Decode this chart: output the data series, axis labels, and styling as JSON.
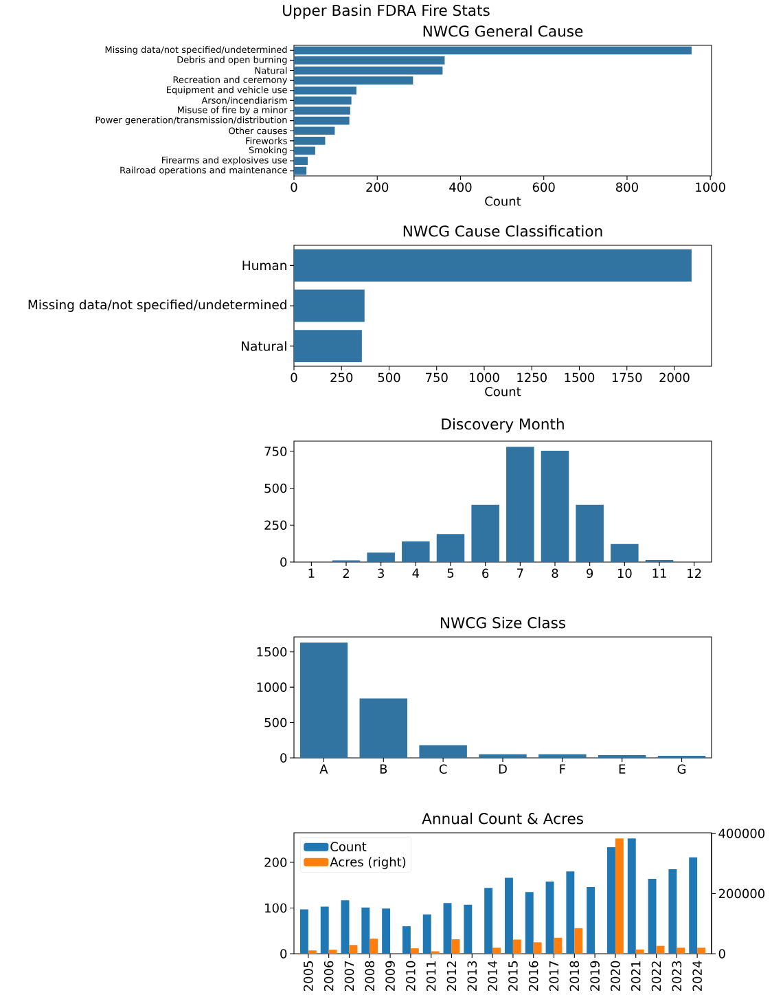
{
  "chart_data": [
    {
      "type": "bar",
      "orientation": "horizontal",
      "title": "Upper Basin FDRA Fire Stats",
      "subtitle": "NWCG General Cause",
      "xlabel": "Count",
      "categories": [
        "Missing data/not specified/undetermined",
        "Debris and open burning",
        "Natural",
        "Recreation and ceremony",
        "Equipment and vehicle use",
        "Arson/incendiarism",
        "Misuse of fire by a minor",
        "Power generation/transmission/distribution",
        "Other causes",
        "Fireworks",
        "Smoking",
        "Firearms and explosives use",
        "Railroad operations and maintenance"
      ],
      "values": [
        955,
        362,
        357,
        286,
        150,
        138,
        135,
        133,
        98,
        75,
        51,
        33,
        30
      ],
      "color": "#3274a1",
      "xlim": [
        0,
        1003
      ],
      "xticks": [
        0,
        200,
        400,
        600,
        800,
        1000
      ]
    },
    {
      "type": "bar",
      "orientation": "horizontal",
      "title": "NWCG Cause Classification",
      "xlabel": "Count",
      "categories": [
        "Human",
        "Missing data/not specified/undetermined",
        "Natural"
      ],
      "values": [
        2090,
        371,
        357
      ],
      "color": "#3274a1",
      "xlim": [
        0,
        2195
      ],
      "xticks": [
        0,
        250,
        500,
        750,
        1000,
        1250,
        1500,
        1750,
        2000
      ]
    },
    {
      "type": "bar",
      "title": "Discovery Month",
      "categories": [
        "1",
        "2",
        "3",
        "4",
        "5",
        "6",
        "7",
        "8",
        "9",
        "10",
        "11",
        "12"
      ],
      "values": [
        0,
        12,
        64,
        140,
        190,
        387,
        780,
        754,
        387,
        122,
        14,
        0
      ],
      "color": "#3274a1",
      "ylim": [
        0,
        819
      ],
      "yticks": [
        0,
        250,
        500,
        750
      ]
    },
    {
      "type": "bar",
      "title": "NWCG Size Class",
      "categories": [
        "A",
        "B",
        "C",
        "D",
        "F",
        "E",
        "G"
      ],
      "values": [
        1630,
        840,
        180,
        50,
        50,
        40,
        30
      ],
      "color": "#3274a1",
      "ylim": [
        0,
        1711
      ],
      "yticks": [
        0,
        500,
        1000,
        1500
      ]
    },
    {
      "type": "bar",
      "title": "Annual Count & Acres",
      "categories": [
        "2005",
        "2006",
        "2007",
        "2008",
        "2009",
        "2010",
        "2011",
        "2012",
        "2013",
        "2014",
        "2015",
        "2016",
        "2017",
        "2018",
        "2019",
        "2020",
        "2021",
        "2022",
        "2023",
        "2024"
      ],
      "series": [
        {
          "name": "Count",
          "color": "#1f77b4",
          "values": [
            97,
            103,
            117,
            101,
            99,
            60,
            86,
            111,
            107,
            144,
            166,
            135,
            158,
            180,
            146,
            233,
            252,
            164,
            185,
            211
          ]
        },
        {
          "name": "Acres (right)",
          "color": "#ff7f0e",
          "axis": "y2",
          "values": [
            11000,
            13000,
            29000,
            50000,
            null,
            18000,
            8000,
            48000,
            null,
            20000,
            47000,
            38000,
            53000,
            85000,
            null,
            383000,
            14000,
            26000,
            20000,
            20000
          ]
        }
      ],
      "ylim": [
        0,
        264.6
      ],
      "yticks": [
        0,
        100,
        200
      ],
      "y2lim": [
        0,
        402000
      ],
      "y2ticks": [
        0,
        200000,
        400000
      ],
      "legend": "top left"
    }
  ]
}
